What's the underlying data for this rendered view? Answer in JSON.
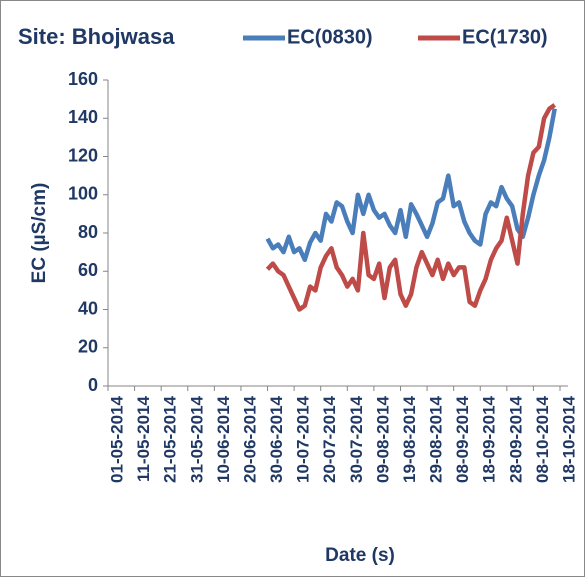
{
  "chart_data": {
    "type": "line",
    "title": "Site: Bhojwasa",
    "x_label": "Date (s)",
    "y_label": "EC (µS/cm)",
    "legend": "top",
    "x": [
      "30-06-2014",
      "02-07-2014",
      "04-07-2014",
      "06-07-2014",
      "08-07-2014",
      "10-07-2014",
      "12-07-2014",
      "14-07-2014",
      "16-07-2014",
      "18-07-2014",
      "20-07-2014",
      "22-07-2014",
      "24-07-2014",
      "26-07-2014",
      "28-07-2014",
      "30-07-2014",
      "01-08-2014",
      "03-08-2014",
      "05-08-2014",
      "07-08-2014",
      "09-08-2014",
      "11-08-2014",
      "13-08-2014",
      "15-08-2014",
      "17-08-2014",
      "19-08-2014",
      "21-08-2014",
      "23-08-2014",
      "25-08-2014",
      "27-08-2014",
      "29-08-2014",
      "31-08-2014",
      "02-09-2014",
      "04-09-2014",
      "06-09-2014",
      "08-09-2014",
      "10-09-2014",
      "12-09-2014",
      "14-09-2014",
      "16-09-2014",
      "18-09-2014",
      "20-09-2014",
      "22-09-2014",
      "24-09-2014",
      "26-09-2014",
      "28-09-2014",
      "30-09-2014",
      "02-10-2014",
      "04-10-2014",
      "06-10-2014",
      "08-10-2014",
      "10-10-2014",
      "12-10-2014",
      "14-10-2014",
      "16-10-2014"
    ],
    "series": [
      {
        "name": "EC(0830)",
        "color": "#4a7ebb",
        "values": [
          77,
          72,
          74,
          70,
          78,
          70,
          72,
          66,
          75,
          80,
          76,
          90,
          86,
          96,
          94,
          86,
          80,
          100,
          90,
          100,
          92,
          88,
          90,
          84,
          80,
          92,
          78,
          95,
          90,
          84,
          78,
          85,
          96,
          98,
          110,
          94,
          96,
          86,
          80,
          76,
          74,
          90,
          96,
          94,
          104,
          98,
          94,
          82,
          78,
          88,
          100,
          110,
          118,
          130,
          145
        ]
      },
      {
        "name": "EC(1730)",
        "color": "#be4b48",
        "values": [
          61,
          64,
          60,
          58,
          52,
          46,
          40,
          42,
          52,
          50,
          62,
          68,
          72,
          62,
          58,
          52,
          56,
          50,
          80,
          58,
          56,
          64,
          46,
          62,
          66,
          48,
          42,
          48,
          62,
          70,
          64,
          58,
          66,
          56,
          64,
          58,
          62,
          62,
          44,
          42,
          50,
          56,
          66,
          72,
          76,
          88,
          76,
          64,
          90,
          110,
          122,
          125,
          140,
          145,
          147
        ]
      }
    ],
    "xlim": [
      "01-05-2014",
      "21-10-2014"
    ],
    "xticks": [
      "01-05-2014",
      "11-05-2014",
      "21-05-2014",
      "31-05-2014",
      "10-06-2014",
      "20-06-2014",
      "30-06-2014",
      "10-07-2014",
      "20-07-2014",
      "30-07-2014",
      "09-08-2014",
      "19-08-2014",
      "29-08-2014",
      "08-09-2014",
      "18-09-2014",
      "28-09-2014",
      "08-10-2014",
      "18-10-2014"
    ],
    "ylim": [
      0,
      160
    ],
    "yticks": [
      0,
      20,
      40,
      60,
      80,
      100,
      120,
      140,
      160
    ]
  }
}
